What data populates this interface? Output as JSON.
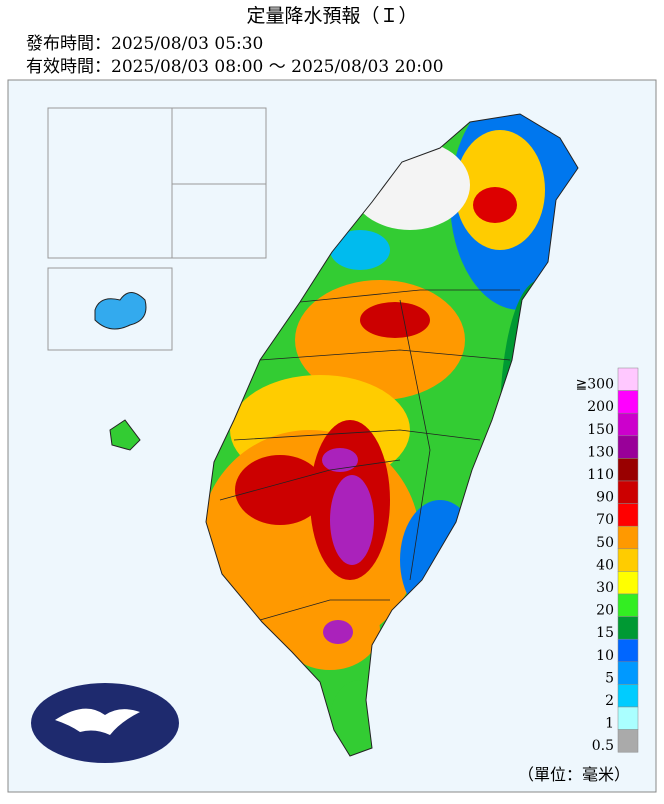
{
  "header": {
    "title": "定量降水預報（Ｉ）",
    "issued": "發布時間：2025/08/03 05:30",
    "valid": "有效時間：2025/08/03 08:00 ～ 2025/08/03 20:00"
  },
  "legend": {
    "items": [
      {
        "label": "≧300",
        "color": "#ffc8ff"
      },
      {
        "label": "200",
        "color": "#ff00ff"
      },
      {
        "label": "150",
        "color": "#cc00cc"
      },
      {
        "label": "130",
        "color": "#990099"
      },
      {
        "label": "110",
        "color": "#990000"
      },
      {
        "label": "90",
        "color": "#cc0000"
      },
      {
        "label": "70",
        "color": "#ff0000"
      },
      {
        "label": "50",
        "color": "#ff9900"
      },
      {
        "label": "40",
        "color": "#ffcc00"
      },
      {
        "label": "30",
        "color": "#ffff00"
      },
      {
        "label": "20",
        "color": "#33ee22"
      },
      {
        "label": "15",
        "color": "#009933"
      },
      {
        "label": "10",
        "color": "#0066ff"
      },
      {
        "label": "5",
        "color": "#0099ff"
      },
      {
        "label": "2",
        "color": "#00ccff"
      },
      {
        "label": "1",
        "color": "#aaffff"
      },
      {
        "label": "0.5",
        "color": "#aaaaaa"
      }
    ],
    "unit": "（單位：毫米）"
  }
}
